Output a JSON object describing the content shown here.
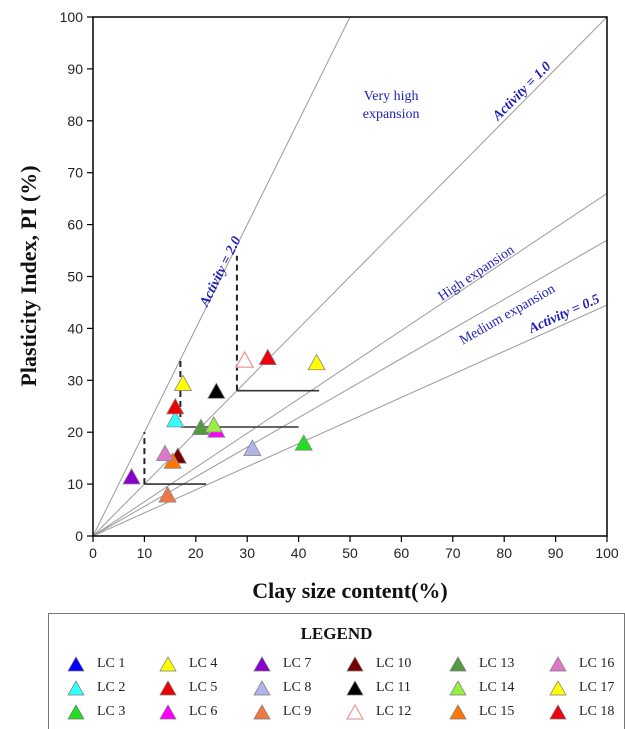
{
  "chart_data": {
    "type": "scatter",
    "xlabel": "Clay size content(%)",
    "ylabel": "Plasticity Index, PI (%)",
    "xlim": [
      0,
      100
    ],
    "ylim": [
      0,
      100
    ],
    "xticks": [
      0,
      10,
      20,
      30,
      40,
      50,
      60,
      70,
      80,
      90,
      100
    ],
    "yticks": [
      0,
      10,
      20,
      30,
      40,
      50,
      60,
      70,
      80,
      90,
      100
    ],
    "grid": false,
    "legend_title": "LEGEND",
    "reference_lines": [
      {
        "slope": 2.0,
        "label": "Activity = 2.0"
      },
      {
        "slope": 1.0,
        "label": "Activity = 1.0"
      },
      {
        "slope": 0.66,
        "label": ""
      },
      {
        "slope": 0.57,
        "label": ""
      },
      {
        "slope": 0.445,
        "label": "Activity = 0.5"
      }
    ],
    "zone_labels": [
      {
        "lines": [
          "Very high",
          "expansion"
        ],
        "x": 58,
        "y": 84
      },
      {
        "lines": [
          "High expansion"
        ],
        "x": 75,
        "y": 50,
        "angle": -34
      },
      {
        "lines": [
          "Medium expansion"
        ],
        "x": 81,
        "y": 42,
        "angle": -30
      }
    ],
    "bracket_lines": [
      {
        "x1": 10,
        "y1": 10,
        "x2": 22,
        "y2": 10
      },
      {
        "x1": 17,
        "y1": 21,
        "x2": 40,
        "y2": 21
      },
      {
        "x1": 28,
        "y1": 28,
        "x2": 44,
        "y2": 28
      }
    ],
    "dashed_lines": [
      {
        "x": 10,
        "y1": 10,
        "y2": 20
      },
      {
        "x": 17,
        "y1": 21,
        "y2": 34
      },
      {
        "x": 28,
        "y1": 28,
        "y2": 54
      }
    ],
    "series": [
      {
        "name": "LC 1",
        "color": "#0000ff",
        "hollow": false,
        "x": [],
        "y": []
      },
      {
        "name": "LC 2",
        "color": "#33ffff",
        "hollow": false,
        "x": [
          16
        ],
        "y": [
          22.5
        ]
      },
      {
        "name": "LC 3",
        "color": "#22dd22",
        "hollow": false,
        "x": [
          41
        ],
        "y": [
          18
        ]
      },
      {
        "name": "LC 4",
        "color": "#ffff00",
        "hollow": false,
        "x": [
          17.5
        ],
        "y": [
          29.5
        ]
      },
      {
        "name": "LC 5",
        "color": "#ee0000",
        "hollow": false,
        "x": [
          16
        ],
        "y": [
          25
        ]
      },
      {
        "name": "LC 6",
        "color": "#ff00ff",
        "hollow": false,
        "x": [
          24
        ],
        "y": [
          20.5
        ]
      },
      {
        "name": "LC 7",
        "color": "#8800cc",
        "hollow": false,
        "x": [
          7.5
        ],
        "y": [
          11.5
        ]
      },
      {
        "name": "LC 8",
        "color": "#b0b4e8",
        "hollow": false,
        "x": [
          31
        ],
        "y": [
          17
        ]
      },
      {
        "name": "LC 9",
        "color": "#ee7744",
        "hollow": false,
        "x": [
          14.5
        ],
        "y": [
          8
        ]
      },
      {
        "name": "LC 10",
        "color": "#7a0000",
        "hollow": false,
        "x": [
          16.5
        ],
        "y": [
          15.5
        ]
      },
      {
        "name": "LC 11",
        "color": "#000000",
        "hollow": false,
        "x": [
          24
        ],
        "y": [
          28
        ]
      },
      {
        "name": "LC 12",
        "color": "#e8a0a0",
        "hollow": true,
        "x": [
          29.5
        ],
        "y": [
          34
        ]
      },
      {
        "name": "LC 13",
        "color": "#559944",
        "hollow": false,
        "x": [
          21
        ],
        "y": [
          21
        ]
      },
      {
        "name": "LC 14",
        "color": "#99ee44",
        "hollow": false,
        "x": [
          23.5
        ],
        "y": [
          21.5
        ]
      },
      {
        "name": "LC 15",
        "color": "#ff7700",
        "hollow": false,
        "x": [
          15.5
        ],
        "y": [
          14.5
        ]
      },
      {
        "name": "LC 16",
        "color": "#dd77cc",
        "hollow": false,
        "x": [
          14
        ],
        "y": [
          16
        ]
      },
      {
        "name": "LC 17",
        "color": "#ffff00",
        "hollow": false,
        "x": [
          43.5
        ],
        "y": [
          33.5
        ]
      },
      {
        "name": "LC 18",
        "color": "#ee0011",
        "hollow": false,
        "x": [
          34
        ],
        "y": [
          34.5
        ]
      }
    ]
  }
}
